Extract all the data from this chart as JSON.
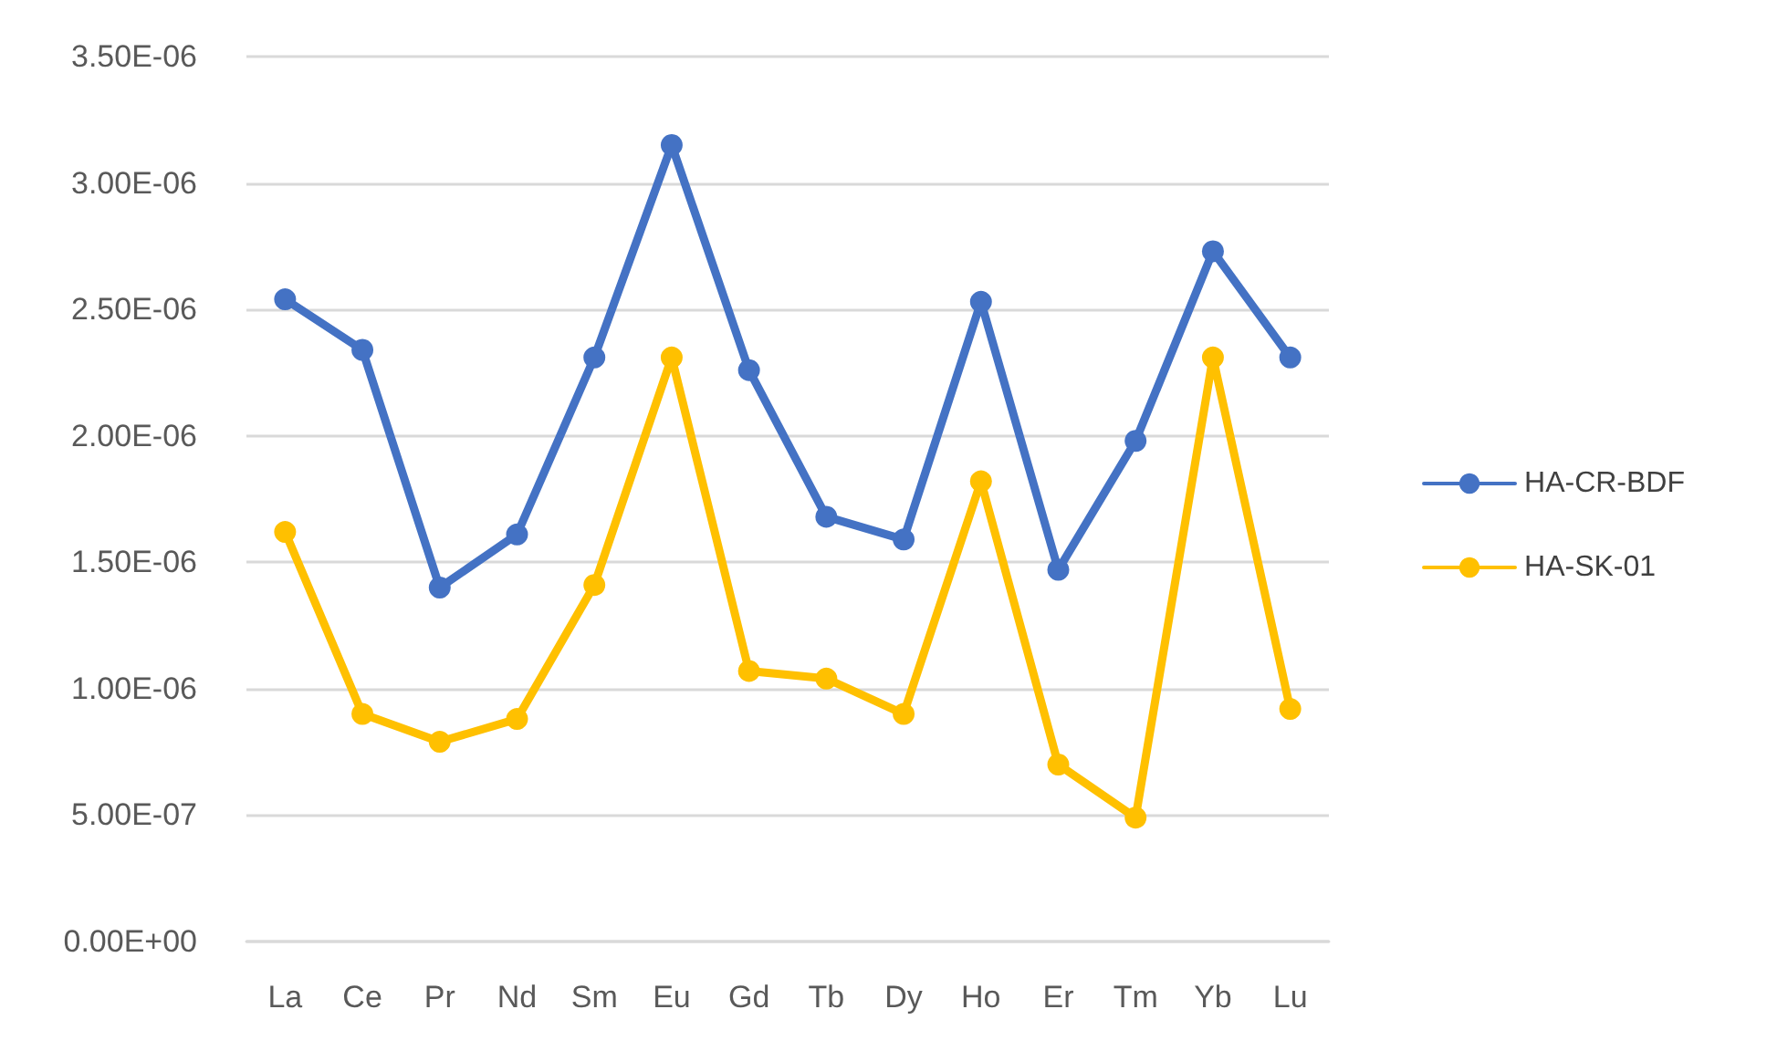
{
  "chart_data": {
    "type": "line",
    "categories": [
      "La",
      "Ce",
      "Pr",
      "Nd",
      "Sm",
      "Eu",
      "Gd",
      "Tb",
      "Dy",
      "Ho",
      "Er",
      "Tm",
      "Yb",
      "Lu"
    ],
    "series": [
      {
        "name": "HA-CR-BDF",
        "color": "#4472c4",
        "values": [
          2.54e-06,
          2.34e-06,
          1.4e-06,
          1.61e-06,
          2.31e-06,
          3.15e-06,
          2.26e-06,
          1.68e-06,
          1.59e-06,
          2.53e-06,
          1.47e-06,
          1.98e-06,
          2.73e-06,
          2.31e-06
        ]
      },
      {
        "name": "HA-SK-01",
        "color": "#ffc000",
        "values": [
          1.62e-06,
          9e-07,
          7.9e-07,
          8.8e-07,
          1.41e-06,
          2.31e-06,
          1.07e-06,
          1.04e-06,
          9e-07,
          1.82e-06,
          7e-07,
          4.9e-07,
          2.31e-06,
          9.2e-07
        ]
      }
    ],
    "ylim": [
      0,
      3.5e-06
    ],
    "yticks": [
      {
        "value": 0,
        "label": "0.00E+00"
      },
      {
        "value": 5e-07,
        "label": "5.00E-07"
      },
      {
        "value": 1e-06,
        "label": "1.00E-06"
      },
      {
        "value": 1.5e-06,
        "label": "1.50E-06"
      },
      {
        "value": 2e-06,
        "label": "2.00E-06"
      },
      {
        "value": 2.5e-06,
        "label": "2.50E-06"
      },
      {
        "value": 3e-06,
        "label": "3.00E-06"
      },
      {
        "value": 3.5e-06,
        "label": "3.50E-06"
      }
    ],
    "grid": "y",
    "legend": "right",
    "marker": "circle",
    "line_style": "solid"
  }
}
